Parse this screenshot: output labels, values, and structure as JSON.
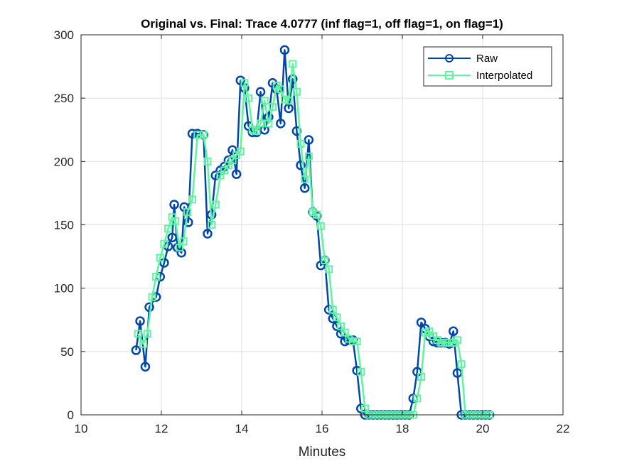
{
  "colors": {
    "raw": "#0047AB",
    "interp": "#5CF5A0",
    "axis": "#262626",
    "grid": "#dfdfdf"
  },
  "chart_data": {
    "type": "line",
    "title": "Original vs. Final: Trace 4.0777 (inf flag=1, off flag=1, on flag=1)",
    "xlabel": "Minutes",
    "ylabel": "",
    "xlim": [
      10,
      22
    ],
    "ylim": [
      0,
      300
    ],
    "xticks": [
      10,
      12,
      14,
      16,
      18,
      20,
      22
    ],
    "yticks": [
      0,
      50,
      100,
      150,
      200,
      250,
      300
    ],
    "grid": true,
    "legend": "top-right",
    "series": [
      {
        "name": "Raw",
        "marker": "circle",
        "x": [
          11.37,
          11.47,
          11.6,
          11.7,
          11.87,
          11.97,
          12.07,
          12.17,
          12.27,
          12.32,
          12.4,
          12.5,
          12.57,
          12.67,
          12.77,
          12.9,
          13.05,
          13.15,
          13.25,
          13.35,
          13.47,
          13.57,
          13.67,
          13.77,
          13.87,
          13.97,
          14.07,
          14.17,
          14.27,
          14.37,
          14.47,
          14.57,
          14.67,
          14.77,
          14.87,
          14.97,
          15.07,
          15.17,
          15.27,
          15.37,
          15.47,
          15.57,
          15.67,
          15.77,
          15.87,
          15.97,
          16.07,
          16.17,
          16.27,
          16.37,
          16.47,
          16.57,
          16.67,
          16.77,
          16.87,
          16.97,
          17.07,
          17.17,
          17.27,
          17.37,
          17.47,
          17.57,
          17.67,
          17.77,
          17.87,
          17.97,
          18.07,
          18.17,
          18.27,
          18.37,
          18.47,
          18.57,
          18.67,
          18.77,
          18.87,
          18.97,
          19.07,
          19.17,
          19.27,
          19.37,
          19.47,
          19.57,
          19.67,
          19.77,
          19.87,
          19.97,
          20.07,
          20.17
        ],
        "y": [
          51,
          74,
          38,
          85,
          93,
          109,
          120,
          133,
          140,
          166,
          132,
          128,
          164,
          152,
          222,
          222,
          221,
          143,
          158,
          189,
          193,
          196,
          201,
          209,
          190,
          264,
          258,
          228,
          223,
          223,
          255,
          225,
          235,
          262,
          257,
          230,
          288,
          242,
          265,
          224,
          197,
          179,
          217,
          160,
          157,
          118,
          122,
          83,
          76,
          70,
          64,
          58,
          59,
          59,
          35,
          5,
          0,
          0,
          0,
          0,
          0,
          0,
          0,
          0,
          0,
          0,
          0,
          0,
          13,
          34,
          73,
          68,
          62,
          58,
          57,
          57,
          57,
          56,
          66,
          33,
          0,
          0,
          0,
          0,
          0,
          0,
          0,
          0
        ]
      },
      {
        "name": "Interpolated",
        "marker": "square",
        "x": [
          11.42,
          11.55,
          11.65,
          11.77,
          11.87,
          11.97,
          12.07,
          12.17,
          12.27,
          12.35,
          12.45,
          12.55,
          12.65,
          12.77,
          12.9,
          13.05,
          13.15,
          13.25,
          13.35,
          13.47,
          13.57,
          13.67,
          13.77,
          13.87,
          13.97,
          14.07,
          14.17,
          14.27,
          14.37,
          14.47,
          14.57,
          14.67,
          14.77,
          14.87,
          14.97,
          15.07,
          15.17,
          15.27,
          15.37,
          15.47,
          15.57,
          15.67,
          15.77,
          15.87,
          15.97,
          16.07,
          16.17,
          16.27,
          16.37,
          16.47,
          16.57,
          16.67,
          16.77,
          16.87,
          16.97,
          17.07,
          17.17,
          17.27,
          17.37,
          17.47,
          17.57,
          17.67,
          17.77,
          17.87,
          17.97,
          18.07,
          18.17,
          18.27,
          18.37,
          18.47,
          18.57,
          18.67,
          18.77,
          18.87,
          18.97,
          19.07,
          19.17,
          19.27,
          19.37,
          19.47,
          19.57,
          19.67,
          19.77,
          19.87,
          19.97,
          20.07,
          20.17
        ],
        "y": [
          64,
          56,
          64,
          93,
          109,
          124,
          135,
          147,
          156,
          153,
          132,
          137,
          160,
          170,
          221,
          221,
          200,
          150,
          166,
          189,
          193,
          197,
          201,
          205,
          208,
          262,
          250,
          225,
          224,
          230,
          248,
          230,
          243,
          260,
          257,
          249,
          248,
          277,
          255,
          214,
          186,
          204,
          160,
          158,
          149,
          122,
          115,
          83,
          77,
          70,
          65,
          60,
          58,
          58,
          34,
          5,
          0,
          0,
          0,
          0,
          0,
          0,
          0,
          0,
          0,
          0,
          0,
          0,
          13,
          30,
          65,
          66,
          62,
          59,
          57,
          57,
          57,
          57,
          59,
          40,
          0,
          0,
          0,
          0,
          0,
          0,
          0
        ]
      }
    ]
  }
}
